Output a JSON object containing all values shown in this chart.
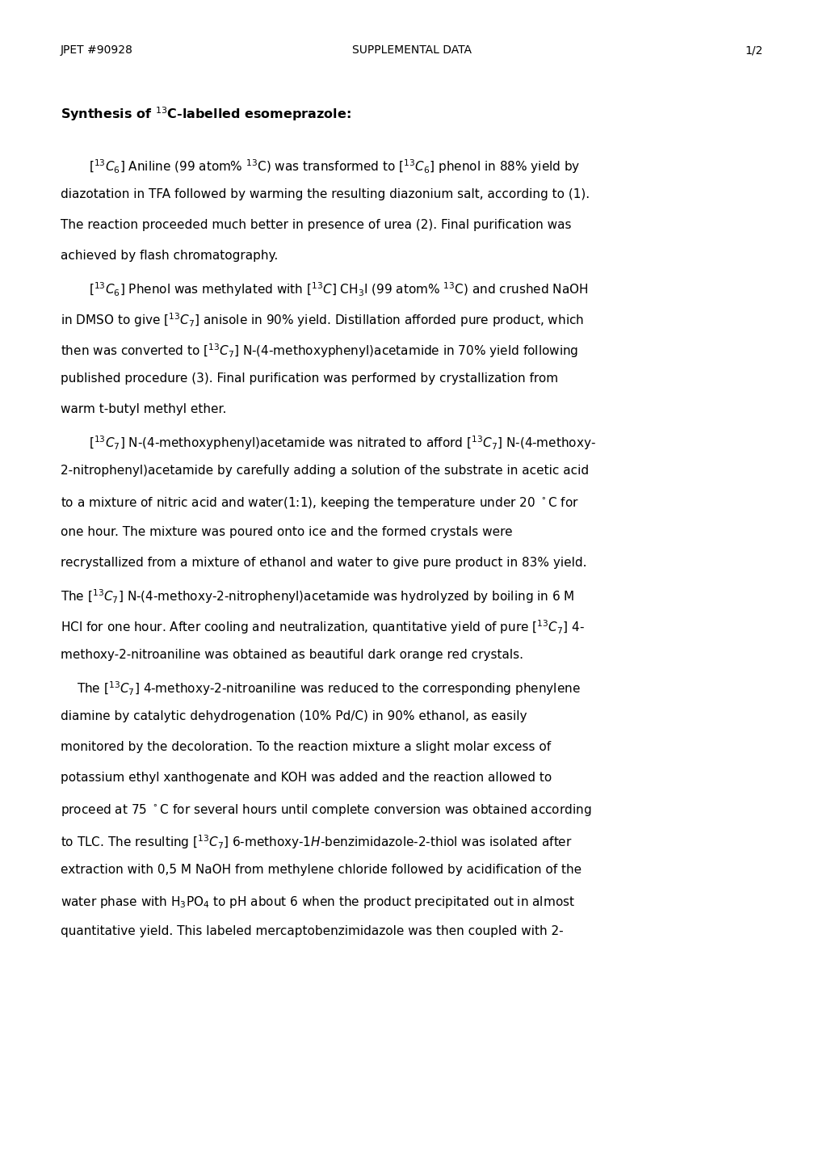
{
  "page_width": 10.2,
  "page_height": 14.43,
  "dpi": 100,
  "background_color": "#ffffff",
  "header_left": "JPET #90928",
  "header_center": "SUPPLEMENTAL DATA",
  "header_right": "1/2",
  "header_font_size": 10.0,
  "title_bold": "Synthesis of $^{13}$C-labelled esomeprazole:",
  "title_font_size": 11.5,
  "body_font_size": 11.0,
  "paragraphs": [
    {
      "indent": true,
      "lines": [
        "$[^{13}C_6]$ Aniline (99 atom% $^{13}$C) was transformed to $[^{13}C_6]$ phenol in 88% yield by",
        "diazotation in TFA followed by warming the resulting diazonium salt, according to (1).",
        "The reaction proceeded much better in presence of urea (2). Final purification was",
        "achieved by flash chromatography."
      ]
    },
    {
      "indent": true,
      "lines": [
        "$[^{13}C_6]$ Phenol was methylated with $[^{13}C]$ CH$_3$I (99 atom% $^{13}$C) and crushed NaOH",
        "in DMSO to give $[^{13}C_7]$ anisole in 90% yield. Distillation afforded pure product, which",
        "then was converted to $[^{13}C_7]$ N-(4-methoxyphenyl)acetamide in 70% yield following",
        "published procedure (3). Final purification was performed by crystallization from",
        "warm t-butyl methyl ether."
      ]
    },
    {
      "indent": true,
      "lines": [
        "$[^{13}C_7]$ N-(4-methoxyphenyl)acetamide was nitrated to afford $[^{13}C_7]$ N-(4-methoxy-",
        "2-nitrophenyl)acetamide by carefully adding a solution of the substrate in acetic acid",
        "to a mixture of nitric acid and water(1:1), keeping the temperature under 20 $^\\circ$C for",
        "one hour. The mixture was poured onto ice and the formed crystals were",
        "recrystallized from a mixture of ethanol and water to give pure product in 83% yield.",
        "The $[^{13}C_7]$ N-(4-methoxy-2-nitrophenyl)acetamide was hydrolyzed by boiling in 6 M",
        "HCl for one hour. After cooling and neutralization, quantitative yield of pure $[^{13}C_7]$ 4-",
        "methoxy-2-nitroaniline was obtained as beautiful dark orange red crystals."
      ]
    },
    {
      "indent": true,
      "indent_word": "The",
      "lines": [
        "The $[^{13}C_7]$ 4-methoxy-2-nitroaniline was reduced to the corresponding phenylene",
        "diamine by catalytic dehydrogenation (10% Pd/C) in 90% ethanol, as easily",
        "monitored by the decoloration. To the reaction mixture a slight molar excess of",
        "potassium ethyl xanthogenate and KOH was added and the reaction allowed to",
        "proceed at 75 $^\\circ$C for several hours until complete conversion was obtained according",
        "to TLC. The resulting $[^{13}C_7]$ 6-methoxy-1$H$-benzimidazole-2-thiol was isolated after",
        "extraction with 0,5 M NaOH from methylene chloride followed by acidification of the",
        "water phase with H$_3$PO$_4$ to pH about 6 when the product precipitated out in almost",
        "quantitative yield. This labeled mercaptobenzimidazole was then coupled with 2-"
      ]
    }
  ]
}
